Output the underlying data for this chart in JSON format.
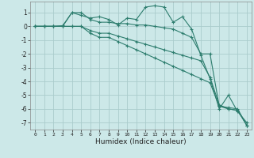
{
  "xlabel": "Humidex (Indice chaleur)",
  "ylabel": "",
  "background_color": "#cce8e8",
  "grid_color": "#aacccc",
  "line_color": "#2d7d6e",
  "xlim": [
    -0.5,
    23.5
  ],
  "ylim": [
    -7.5,
    1.8
  ],
  "x": [
    0,
    1,
    2,
    3,
    4,
    5,
    6,
    7,
    8,
    9,
    10,
    11,
    12,
    13,
    14,
    15,
    16,
    17,
    18,
    19,
    20,
    21,
    22,
    23
  ],
  "series1": [
    0.0,
    0.0,
    0.0,
    0.05,
    1.0,
    0.8,
    0.6,
    0.7,
    0.5,
    0.1,
    0.6,
    0.5,
    1.4,
    1.5,
    1.4,
    0.3,
    0.7,
    -0.2,
    -2.1,
    -3.8,
    -6.0,
    -5.0,
    -6.2,
    -7.0
  ],
  "series2": [
    0.0,
    0.0,
    0.0,
    0.0,
    1.0,
    1.0,
    0.5,
    0.3,
    0.3,
    0.2,
    0.2,
    0.1,
    0.1,
    0.0,
    -0.1,
    -0.2,
    -0.5,
    -0.8,
    -2.0,
    -2.0,
    -5.8,
    -6.0,
    -6.1,
    -7.2
  ],
  "series3": [
    0.0,
    0.0,
    0.0,
    0.0,
    0.0,
    0.0,
    -0.3,
    -0.5,
    -0.5,
    -0.7,
    -0.9,
    -1.1,
    -1.3,
    -1.5,
    -1.7,
    -1.9,
    -2.1,
    -2.3,
    -2.5,
    -3.7,
    -5.7,
    -6.0,
    -6.1,
    -7.2
  ],
  "series4": [
    0.0,
    0.0,
    0.0,
    0.0,
    0.0,
    0.0,
    -0.5,
    -0.8,
    -0.8,
    -1.1,
    -1.4,
    -1.7,
    -2.0,
    -2.3,
    -2.6,
    -2.9,
    -3.2,
    -3.5,
    -3.8,
    -4.1,
    -5.8,
    -5.9,
    -6.0,
    -7.2
  ],
  "yticks": [
    1,
    0,
    -1,
    -2,
    -3,
    -4,
    -5,
    -6,
    -7
  ],
  "xticks": [
    0,
    1,
    2,
    3,
    4,
    5,
    6,
    7,
    8,
    9,
    10,
    11,
    12,
    13,
    14,
    15,
    16,
    17,
    18,
    19,
    20,
    21,
    22,
    23
  ],
  "figsize": [
    3.2,
    2.0
  ],
  "dpi": 100
}
